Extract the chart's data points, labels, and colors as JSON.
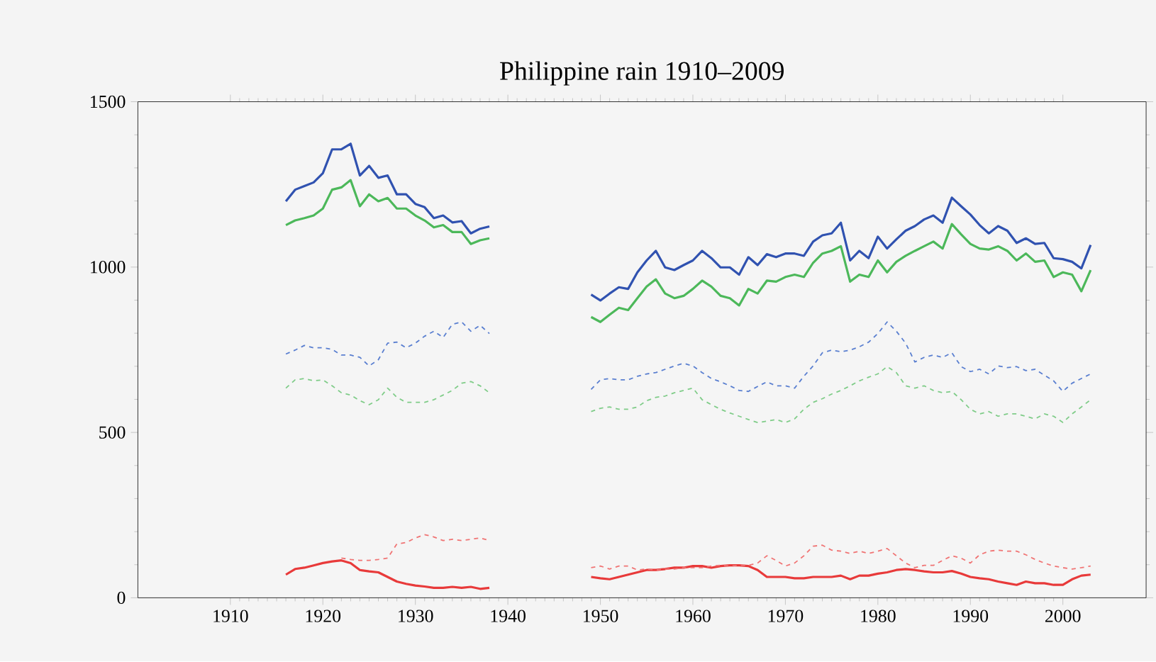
{
  "chart_data": {
    "type": "line",
    "title": "Philippine rain 1910–2009",
    "x": [
      1916,
      1917,
      1918,
      1919,
      1920,
      1921,
      1922,
      1923,
      1924,
      1925,
      1926,
      1927,
      1928,
      1929,
      1930,
      1931,
      1932,
      1933,
      1934,
      1935,
      1936,
      1937,
      1938,
      1939,
      1940,
      1941,
      1942,
      1943,
      1944,
      1945,
      1946,
      1947,
      1948,
      1949,
      1950,
      1951,
      1952,
      1953,
      1954,
      1955,
      1956,
      1957,
      1958,
      1959,
      1960,
      1961,
      1962,
      1963,
      1964,
      1965,
      1966,
      1967,
      1968,
      1969,
      1970,
      1971,
      1972,
      1973,
      1974,
      1975,
      1976,
      1977,
      1978,
      1979,
      1980,
      1981,
      1982,
      1983,
      1984,
      1985,
      1986,
      1987,
      1988,
      1989,
      1990,
      1991,
      1992,
      1993,
      1994,
      1995,
      1996,
      1997,
      1998,
      1999,
      2000,
      2001,
      2002,
      2003
    ],
    "series": [
      {
        "color": "#3052b0",
        "line_style": "solid",
        "values": [
          1199,
          1234,
          1245,
          1256,
          1284,
          1356,
          1356,
          1373,
          1277,
          1306,
          1270,
          1277,
          1220,
          1220,
          1191,
          1181,
          1148,
          1156,
          1135,
          1139,
          1102,
          1116,
          1123,
          null,
          null,
          null,
          null,
          null,
          null,
          null,
          null,
          null,
          null,
          917,
          899,
          920,
          939,
          934,
          984,
          1020,
          1049,
          999,
          991,
          1006,
          1020,
          1049,
          1027,
          999,
          999,
          977,
          1030,
          1006,
          1039,
          1030,
          1041,
          1041,
          1034,
          1077,
          1096,
          1102,
          1134,
          1020,
          1049,
          1027,
          1092,
          1056,
          1084,
          1110,
          1124,
          1144,
          1156,
          1134,
          1210,
          1184,
          1159,
          1127,
          1102,
          1124,
          1110,
          1073,
          1087,
          1070,
          1073,
          1027,
          1024,
          1016,
          996,
          1067
        ]
      },
      {
        "color": "#4cb85a",
        "line_style": "solid",
        "values": [
          1127,
          1141,
          1148,
          1156,
          1177,
          1234,
          1241,
          1263,
          1184,
          1220,
          1199,
          1209,
          1177,
          1177,
          1156,
          1141,
          1120,
          1127,
          1106,
          1106,
          1070,
          1081,
          1087,
          null,
          null,
          null,
          null,
          null,
          null,
          null,
          null,
          null,
          null,
          849,
          834,
          856,
          877,
          870,
          906,
          941,
          963,
          920,
          906,
          913,
          934,
          959,
          941,
          913,
          906,
          884,
          934,
          920,
          959,
          956,
          970,
          977,
          970,
          1013,
          1041,
          1049,
          1063,
          956,
          977,
          970,
          1020,
          984,
          1016,
          1034,
          1049,
          1063,
          1077,
          1056,
          1130,
          1099,
          1070,
          1056,
          1053,
          1063,
          1049,
          1020,
          1041,
          1016,
          1020,
          970,
          984,
          977,
          927,
          991
        ]
      },
      {
        "color": "#e83a3a",
        "line_style": "solid",
        "values": [
          70,
          87,
          91,
          98,
          105,
          110,
          113,
          105,
          84,
          80,
          77,
          63,
          49,
          42,
          37,
          34,
          30,
          30,
          33,
          30,
          33,
          27,
          30,
          null,
          null,
          null,
          null,
          null,
          null,
          null,
          null,
          null,
          null,
          63,
          59,
          56,
          63,
          70,
          77,
          84,
          84,
          87,
          91,
          91,
          96,
          96,
          91,
          96,
          98,
          98,
          96,
          84,
          63,
          63,
          63,
          59,
          59,
          63,
          63,
          63,
          67,
          56,
          67,
          67,
          73,
          77,
          84,
          87,
          84,
          80,
          77,
          77,
          81,
          73,
          63,
          59,
          56,
          49,
          44,
          39,
          49,
          44,
          44,
          39,
          39,
          56,
          67,
          70
        ]
      },
      {
        "color": "#5a7fd0",
        "line_style": "dashed",
        "values": [
          737,
          749,
          763,
          756,
          756,
          751,
          734,
          734,
          727,
          701,
          720,
          770,
          773,
          756,
          770,
          791,
          806,
          787,
          827,
          834,
          806,
          824,
          799,
          null,
          null,
          null,
          null,
          null,
          null,
          null,
          null,
          null,
          null,
          630,
          659,
          663,
          659,
          659,
          670,
          677,
          681,
          691,
          701,
          709,
          701,
          681,
          663,
          653,
          641,
          627,
          624,
          639,
          653,
          641,
          641,
          634,
          670,
          701,
          741,
          749,
          744,
          749,
          759,
          773,
          799,
          834,
          806,
          770,
          713,
          727,
          734,
          727,
          741,
          699,
          684,
          691,
          677,
          701,
          696,
          699,
          687,
          691,
          673,
          656,
          624,
          649,
          663,
          677
        ]
      },
      {
        "color": "#7fcc88",
        "line_style": "dashed",
        "values": [
          634,
          659,
          663,
          656,
          659,
          641,
          620,
          613,
          596,
          584,
          599,
          634,
          606,
          591,
          591,
          591,
          599,
          613,
          627,
          649,
          654,
          641,
          620,
          null,
          null,
          null,
          null,
          null,
          null,
          null,
          null,
          null,
          null,
          563,
          573,
          577,
          570,
          570,
          577,
          596,
          606,
          610,
          620,
          627,
          634,
          599,
          584,
          570,
          559,
          549,
          539,
          530,
          534,
          539,
          530,
          541,
          570,
          591,
          602,
          616,
          627,
          641,
          656,
          667,
          677,
          699,
          681,
          641,
          634,
          641,
          627,
          620,
          624,
          599,
          570,
          556,
          563,
          549,
          556,
          556,
          549,
          541,
          556,
          549,
          530,
          556,
          577,
          599
        ]
      },
      {
        "color": "#f07474",
        "line_style": "dashed",
        "values": [
          null,
          null,
          null,
          null,
          null,
          null,
          120,
          116,
          113,
          113,
          116,
          120,
          163,
          167,
          181,
          191,
          184,
          173,
          177,
          173,
          177,
          181,
          173,
          null,
          null,
          null,
          null,
          null,
          null,
          null,
          null,
          null,
          null,
          91,
          96,
          87,
          96,
          96,
          84,
          87,
          84,
          87,
          87,
          91,
          91,
          91,
          96,
          98,
          96,
          98,
          98,
          105,
          127,
          113,
          96,
          105,
          127,
          156,
          159,
          144,
          141,
          134,
          141,
          134,
          141,
          149,
          127,
          105,
          91,
          98,
          98,
          113,
          127,
          120,
          105,
          130,
          141,
          144,
          141,
          141,
          130,
          116,
          105,
          96,
          91,
          87,
          91,
          96
        ]
      }
    ],
    "xlim": [
      1900,
      2009
    ],
    "ylim": [
      0,
      1500
    ],
    "xticks": [
      1910,
      1920,
      1930,
      1940,
      1950,
      1960,
      1970,
      1980,
      1990,
      2000
    ],
    "yticks": [
      0,
      500,
      1000,
      1500
    ]
  }
}
